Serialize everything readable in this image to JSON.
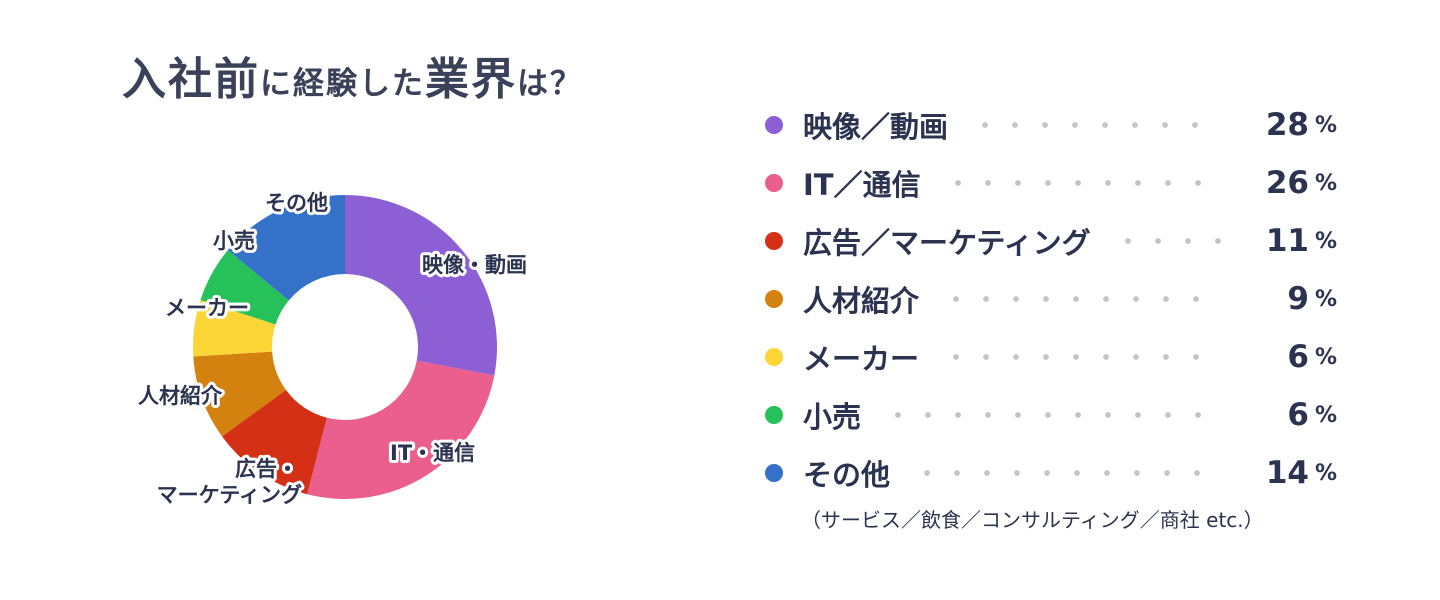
{
  "title": {
    "part1": "入社前",
    "part2": "に経験した",
    "part3": "業界",
    "part4": "は？"
  },
  "chart_data": {
    "type": "pie",
    "donut": true,
    "unit": "%",
    "slices": [
      {
        "legend_label": "映像／動画",
        "chart_label": [
          "映像・動画"
        ],
        "value": 28,
        "color": "#8c5fd4"
      },
      {
        "legend_label": "IT／通信",
        "chart_label": [
          "IT・通信"
        ],
        "value": 26,
        "color": "#eb5f8f"
      },
      {
        "legend_label": "広告／マーケティング",
        "chart_label": [
          "広告・",
          "マーケティング"
        ],
        "value": 11,
        "color": "#d43016"
      },
      {
        "legend_label": "人材紹介",
        "chart_label": [
          "人材紹介"
        ],
        "value": 9,
        "color": "#d4820f"
      },
      {
        "legend_label": "メーカー",
        "chart_label": [
          "メーカー"
        ],
        "value": 6,
        "color": "#fcd636"
      },
      {
        "legend_label": "小売",
        "chart_label": [
          "小売"
        ],
        "value": 6,
        "color": "#27c15a"
      },
      {
        "legend_label": "その他",
        "chart_label": [
          "その他"
        ],
        "value": 14,
        "color": "#3472c9"
      }
    ],
    "note": "（サービス／飲食／コンサルティング／商社 etc.）"
  }
}
